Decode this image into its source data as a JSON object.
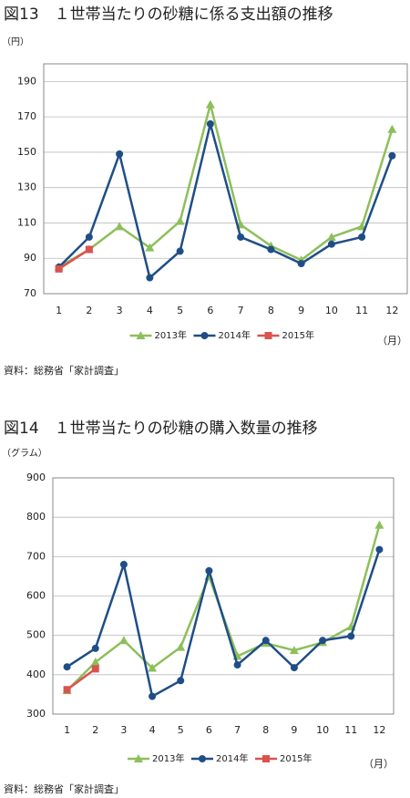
{
  "chart_data": [
    {
      "type": "line",
      "title": "図13　１世帯当たりの砂糖に係る支出額の推移",
      "y_label": "（円）",
      "x_label": "（月）",
      "source": "資料：総務省「家計調査」",
      "categories": [
        "1",
        "2",
        "3",
        "4",
        "5",
        "6",
        "7",
        "8",
        "9",
        "10",
        "11",
        "12"
      ],
      "series": [
        {
          "name": "2013年",
          "color": "#8dbf5a",
          "values": [
            85,
            95,
            108,
            96,
            111,
            177,
            109,
            97,
            89,
            102,
            108,
            163
          ]
        },
        {
          "name": "2014年",
          "color": "#1f4e87",
          "values": [
            85,
            102,
            149,
            79,
            94,
            166,
            102,
            95,
            87,
            98,
            102,
            148
          ]
        },
        {
          "name": "2015年",
          "color": "#d9534f",
          "values": [
            84,
            95,
            null,
            null,
            null,
            null,
            null,
            null,
            null,
            null,
            null,
            null
          ]
        }
      ],
      "ylim": [
        70,
        200
      ],
      "yticks": [
        70,
        90,
        110,
        130,
        150,
        170,
        190
      ],
      "grid": true,
      "legend": "bottom"
    },
    {
      "type": "line",
      "title": "図14　１世帯当たりの砂糖の購入数量の推移",
      "y_label": "（グラム）",
      "x_label": "（月）",
      "source": "資料：総務省「家計調査」",
      "categories": [
        "1",
        "2",
        "3",
        "4",
        "5",
        "6",
        "7",
        "8",
        "9",
        "10",
        "11",
        "12"
      ],
      "series": [
        {
          "name": "2013年",
          "color": "#8dbf5a",
          "values": [
            360,
            432,
            487,
            417,
            470,
            650,
            447,
            480,
            462,
            482,
            522,
            780
          ]
        },
        {
          "name": "2014年",
          "color": "#1f4e87",
          "values": [
            420,
            467,
            680,
            345,
            385,
            664,
            425,
            487,
            418,
            487,
            498,
            718
          ]
        },
        {
          "name": "2015年",
          "color": "#d9534f",
          "values": [
            362,
            415,
            null,
            null,
            null,
            null,
            null,
            null,
            null,
            null,
            null,
            null
          ]
        }
      ],
      "ylim": [
        300,
        900
      ],
      "yticks": [
        300,
        400,
        500,
        600,
        700,
        800,
        900
      ],
      "grid": true,
      "legend": "bottom"
    }
  ]
}
